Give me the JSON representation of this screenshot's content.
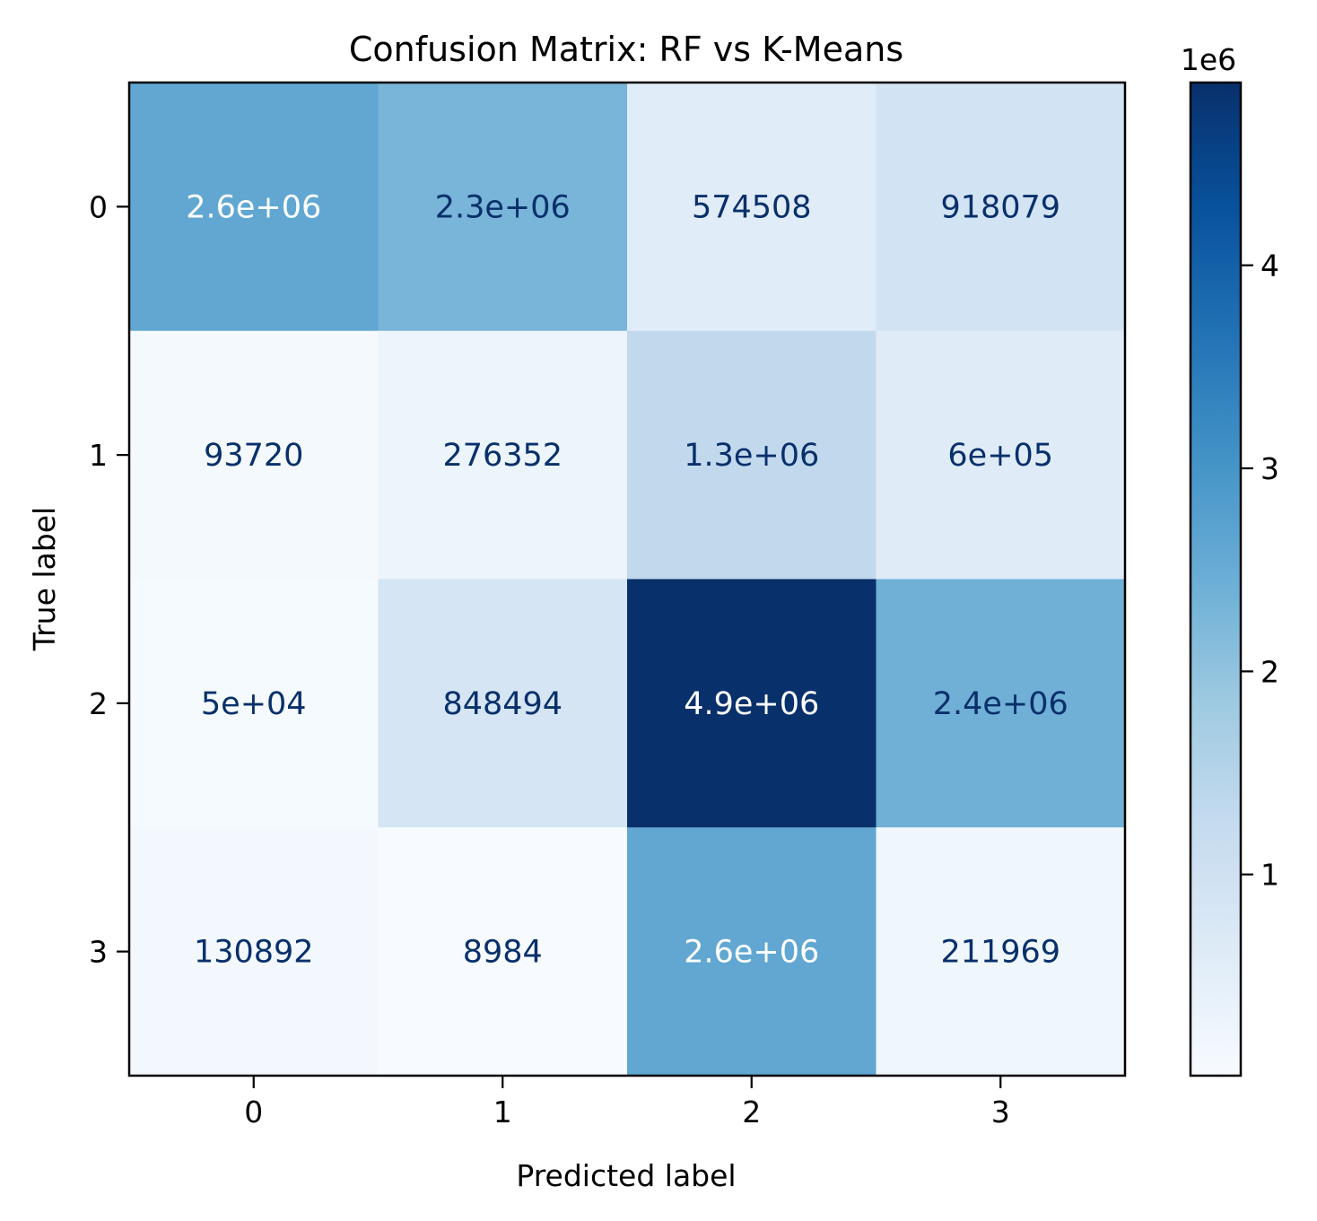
{
  "chart_data": {
    "type": "heatmap",
    "title": "Confusion Matrix: RF vs K-Means",
    "xlabel": "Predicted label",
    "ylabel": "True label",
    "x_categories": [
      "0",
      "1",
      "2",
      "3"
    ],
    "y_categories": [
      "0",
      "1",
      "2",
      "3"
    ],
    "values": [
      [
        2600000,
        2300000,
        574508,
        918079
      ],
      [
        93720,
        276352,
        1300000,
        600000
      ],
      [
        50000,
        848494,
        4900000,
        2400000
      ],
      [
        130892,
        8984,
        2600000,
        211969
      ]
    ],
    "cell_labels": [
      [
        "2.6e+06",
        "2.3e+06",
        "574508",
        "918079"
      ],
      [
        "93720",
        "276352",
        "1.3e+06",
        "6e+05"
      ],
      [
        "5e+04",
        "848494",
        "4.9e+06",
        "2.4e+06"
      ],
      [
        "130892",
        "8984",
        "2.6e+06",
        "211969"
      ]
    ],
    "colormap": "Blues",
    "colorbar": {
      "range": [
        8984,
        4900000
      ],
      "ticks": [
        1,
        2,
        3,
        4
      ],
      "tick_labels": [
        "1",
        "2",
        "3",
        "4"
      ],
      "offset_label": "1e6"
    }
  }
}
